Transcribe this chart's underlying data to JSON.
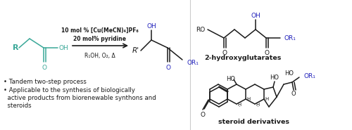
{
  "bg_color": "#ffffff",
  "teal": "#3aA898",
  "blue": "#2222bb",
  "black": "#1a1a1a",
  "gray_line": "#aaaaaa",
  "fs_mol": 7.0,
  "fs_text": 6.2,
  "fs_label": 6.5,
  "fs_bold": 6.8,
  "catalyst_line1": "10 mol % [Cu(MeCN)₄]PF₆",
  "catalyst_line2": "20 mol% pyridine",
  "catalyst_line3": "R₁OH, O₂, Δ",
  "bullet1": "• Tandem two-step process",
  "bullet2": "• Applicable to the synthesis of biologically",
  "bullet2b": "  active products from biorenewable synthons and",
  "bullet2c": "  steroids",
  "label_hydroxy": "2-hydroxyglutarates",
  "label_steroid": "steroid derivatives"
}
